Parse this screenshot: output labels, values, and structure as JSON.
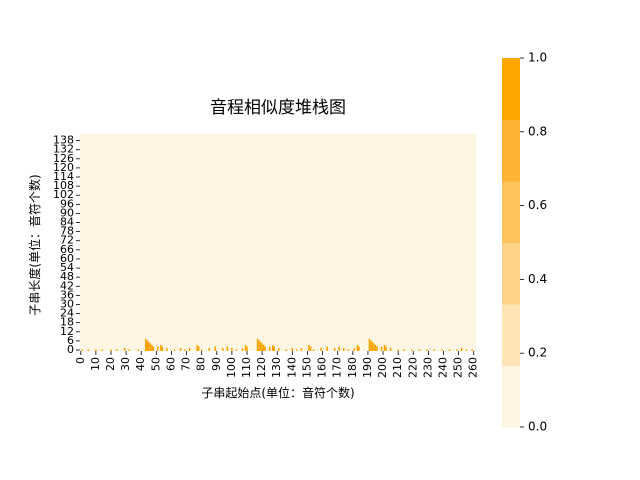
{
  "chart_data": {
    "type": "heatmap",
    "title": "音程相似度堆栈图",
    "xlabel": "子串起始点(单位：音符个数)",
    "ylabel": "子串长度(单位：音符个数)",
    "x_ticks": [
      "0",
      "10",
      "20",
      "30",
      "40",
      "50",
      "60",
      "70",
      "80",
      "90",
      "100",
      "110",
      "120",
      "130",
      "140",
      "150",
      "160",
      "170",
      "180",
      "190",
      "200",
      "210",
      "220",
      "230",
      "240",
      "250",
      "260"
    ],
    "y_ticks": [
      "0",
      "6",
      "12",
      "18",
      "24",
      "30",
      "36",
      "42",
      "48",
      "54",
      "60",
      "66",
      "72",
      "78",
      "84",
      "90",
      "96",
      "102",
      "108",
      "114",
      "120",
      "126",
      "132",
      "138"
    ],
    "x_range": [
      0,
      262
    ],
    "y_range": [
      0,
      143
    ],
    "colorbar": {
      "ticks": [
        "0.0",
        "0.2",
        "0.4",
        "0.6",
        "0.8",
        "1.0"
      ],
      "range": [
        0,
        1
      ]
    },
    "colors": [
      "#fff5e3",
      "#ffe4b5",
      "#ffd48a",
      "#ffc35e",
      "#ffb233",
      "#ffa500"
    ],
    "background_color": "#fff5e3",
    "bar_color": "#ffa500",
    "columns": [
      {
        "x": 1,
        "h": 1
      },
      {
        "x": 5,
        "h": 1
      },
      {
        "x": 10,
        "h": 1
      },
      {
        "x": 14,
        "h": 1
      },
      {
        "x": 20,
        "h": 1
      },
      {
        "x": 24,
        "h": 1
      },
      {
        "x": 29,
        "h": 2
      },
      {
        "x": 32,
        "h": 1
      },
      {
        "x": 38,
        "h": 1
      },
      {
        "x": 43,
        "h": 8
      },
      {
        "x": 44,
        "h": 7
      },
      {
        "x": 45,
        "h": 6
      },
      {
        "x": 46,
        "h": 5
      },
      {
        "x": 47,
        "h": 4
      },
      {
        "x": 48,
        "h": 3
      },
      {
        "x": 51,
        "h": 3
      },
      {
        "x": 53,
        "h": 4
      },
      {
        "x": 54,
        "h": 3
      },
      {
        "x": 57,
        "h": 2
      },
      {
        "x": 62,
        "h": 1
      },
      {
        "x": 66,
        "h": 2
      },
      {
        "x": 69,
        "h": 1
      },
      {
        "x": 72,
        "h": 2
      },
      {
        "x": 77,
        "h": 4
      },
      {
        "x": 78,
        "h": 3
      },
      {
        "x": 80,
        "h": 1
      },
      {
        "x": 85,
        "h": 2
      },
      {
        "x": 89,
        "h": 3
      },
      {
        "x": 94,
        "h": 2
      },
      {
        "x": 97,
        "h": 3
      },
      {
        "x": 100,
        "h": 2
      },
      {
        "x": 103,
        "h": 1
      },
      {
        "x": 107,
        "h": 2
      },
      {
        "x": 109,
        "h": 4
      },
      {
        "x": 110,
        "h": 3
      },
      {
        "x": 117,
        "h": 8
      },
      {
        "x": 118,
        "h": 7
      },
      {
        "x": 119,
        "h": 6
      },
      {
        "x": 120,
        "h": 5
      },
      {
        "x": 121,
        "h": 4
      },
      {
        "x": 122,
        "h": 3
      },
      {
        "x": 125,
        "h": 3
      },
      {
        "x": 127,
        "h": 4
      },
      {
        "x": 128,
        "h": 3
      },
      {
        "x": 131,
        "h": 2
      },
      {
        "x": 136,
        "h": 1
      },
      {
        "x": 140,
        "h": 2
      },
      {
        "x": 143,
        "h": 1
      },
      {
        "x": 146,
        "h": 2
      },
      {
        "x": 151,
        "h": 4
      },
      {
        "x": 152,
        "h": 3
      },
      {
        "x": 154,
        "h": 1
      },
      {
        "x": 159,
        "h": 2
      },
      {
        "x": 163,
        "h": 3
      },
      {
        "x": 168,
        "h": 2
      },
      {
        "x": 171,
        "h": 3
      },
      {
        "x": 174,
        "h": 2
      },
      {
        "x": 177,
        "h": 1
      },
      {
        "x": 181,
        "h": 2
      },
      {
        "x": 183,
        "h": 4
      },
      {
        "x": 184,
        "h": 3
      },
      {
        "x": 191,
        "h": 8
      },
      {
        "x": 192,
        "h": 7
      },
      {
        "x": 193,
        "h": 6
      },
      {
        "x": 194,
        "h": 5
      },
      {
        "x": 195,
        "h": 4
      },
      {
        "x": 196,
        "h": 3
      },
      {
        "x": 199,
        "h": 3
      },
      {
        "x": 201,
        "h": 4
      },
      {
        "x": 202,
        "h": 3
      },
      {
        "x": 205,
        "h": 2
      },
      {
        "x": 210,
        "h": 1
      },
      {
        "x": 214,
        "h": 1
      },
      {
        "x": 219,
        "h": 1
      },
      {
        "x": 224,
        "h": 1
      },
      {
        "x": 229,
        "h": 1
      },
      {
        "x": 234,
        "h": 1
      },
      {
        "x": 239,
        "h": 1
      },
      {
        "x": 244,
        "h": 1
      },
      {
        "x": 249,
        "h": 1
      },
      {
        "x": 252,
        "h": 2
      },
      {
        "x": 255,
        "h": 1
      },
      {
        "x": 259,
        "h": 1
      }
    ]
  }
}
